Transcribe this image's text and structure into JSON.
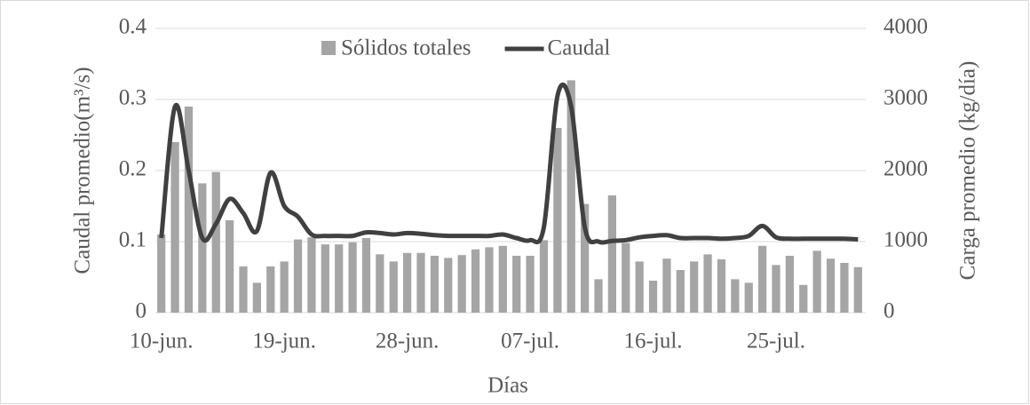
{
  "chart_data": {
    "type": "bar_line",
    "categories": [
      "10-jun.",
      null,
      null,
      null,
      null,
      null,
      null,
      null,
      null,
      "19-jun.",
      null,
      null,
      null,
      null,
      null,
      null,
      null,
      null,
      "28-jun.",
      null,
      null,
      null,
      null,
      null,
      null,
      null,
      null,
      "07-jul.",
      null,
      null,
      null,
      null,
      null,
      null,
      null,
      null,
      "16-jul.",
      null,
      null,
      null,
      null,
      null,
      null,
      null,
      null,
      "25-jul.",
      null,
      null,
      null,
      null,
      null,
      null
    ],
    "series": [
      {
        "name": "Sólidos totales",
        "type": "bar",
        "axis": "y2",
        "color": "#a5a5a5",
        "values": [
          1100,
          2400,
          2900,
          1820,
          1980,
          1300,
          650,
          420,
          650,
          720,
          1030,
          1060,
          960,
          960,
          990,
          1050,
          820,
          720,
          840,
          840,
          800,
          770,
          810,
          890,
          920,
          940,
          800,
          800,
          1020,
          2600,
          3270,
          1530,
          470,
          1650,
          980,
          720,
          450,
          760,
          600,
          720,
          820,
          750,
          470,
          420,
          940,
          670,
          800,
          390,
          870,
          760,
          700,
          640
        ]
      },
      {
        "name": "Caudal",
        "type": "line",
        "axis": "y",
        "color": "#404040",
        "values": [
          0.105,
          0.29,
          0.2,
          0.105,
          0.125,
          0.16,
          0.14,
          0.115,
          0.197,
          0.15,
          0.135,
          0.11,
          0.108,
          0.108,
          0.108,
          0.113,
          0.112,
          0.11,
          0.112,
          0.111,
          0.109,
          0.108,
          0.108,
          0.108,
          0.108,
          0.11,
          0.105,
          0.102,
          0.12,
          0.305,
          0.29,
          0.12,
          0.1,
          0.101,
          0.102,
          0.106,
          0.108,
          0.109,
          0.105,
          0.105,
          0.105,
          0.104,
          0.105,
          0.108,
          0.122,
          0.106,
          0.104,
          0.104,
          0.104,
          0.104,
          0.104,
          0.103
        ]
      }
    ],
    "ylabel": "Caudal promedio(m³/s)",
    "y2label": "Carga promedio (kg/día)",
    "xlabel": "Días",
    "ylim": [
      0,
      0.4
    ],
    "yticks": [
      0,
      0.1,
      0.2,
      0.3,
      0.4
    ],
    "y2lim": [
      0,
      4000
    ],
    "y2ticks": [
      0,
      1000,
      2000,
      3000,
      4000
    ],
    "grid": true,
    "legend": "top"
  }
}
